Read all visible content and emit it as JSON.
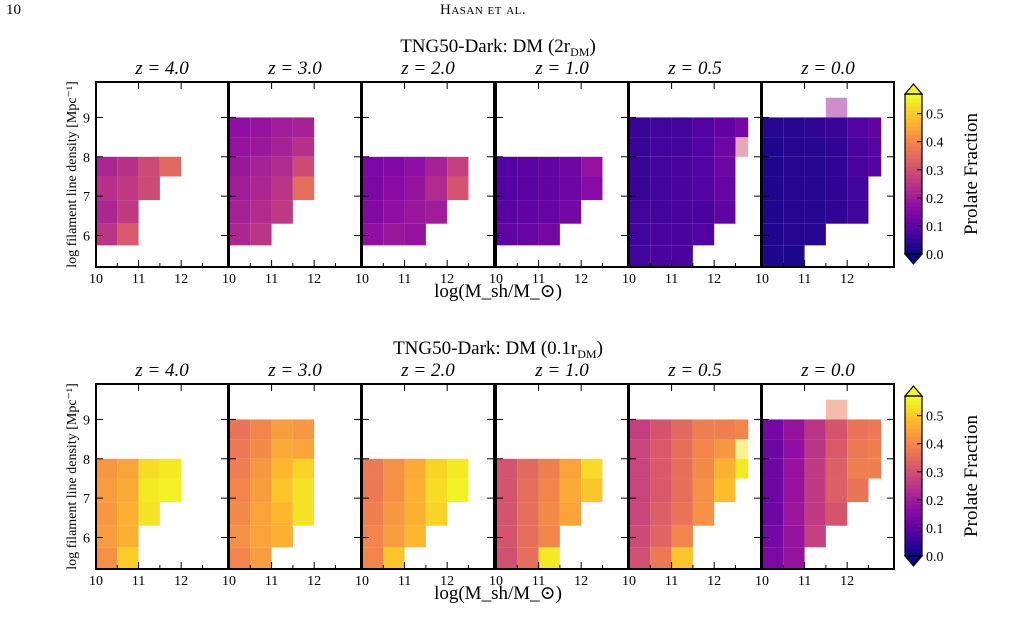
{
  "header": {
    "page_number": "10",
    "running_title": "Hasan et al."
  },
  "colorbar": {
    "label": "Prolate Fraction",
    "ticks": [
      "0.0",
      "0.1",
      "0.2",
      "0.3",
      "0.4",
      "0.5"
    ],
    "range": [
      0.0,
      0.57
    ]
  },
  "chart_data": [
    {
      "type": "heatmap",
      "title": "TNG50-Dark: DM (2r_DM)",
      "xlabel": "log(M_sh/M_⊙)",
      "ylabel": "log filament line density [Mpc⁻¹]",
      "xlim": [
        10,
        13.1
      ],
      "ylim": [
        5.2,
        9.9
      ],
      "x_edges": [
        10.0,
        10.5,
        11.0,
        11.5,
        12.0,
        12.5,
        12.8
      ],
      "y_edges": [
        5.2,
        5.75,
        6.3,
        6.9,
        7.5,
        8.0,
        8.5,
        9.0,
        9.5,
        10.0
      ],
      "colormap": "plasma",
      "panels": [
        {
          "label": "z = 4.0",
          "cells": [
            [
              null,
              null,
              null,
              null,
              null,
              null
            ],
            [
              0.25,
              0.32,
              null,
              null,
              null,
              null
            ],
            [
              0.22,
              0.26,
              null,
              null,
              null,
              null
            ],
            [
              0.24,
              0.26,
              0.29,
              null,
              null,
              null
            ],
            [
              0.22,
              0.24,
              0.29,
              0.35,
              null,
              null
            ],
            [
              null,
              null,
              null,
              null,
              null,
              null
            ],
            [
              null,
              null,
              null,
              null,
              null,
              null
            ],
            [
              null,
              null,
              null,
              null,
              null,
              null
            ],
            [
              null,
              null,
              null,
              null,
              null,
              null
            ]
          ]
        },
        {
          "label": "z = 3.0",
          "cells": [
            [
              null,
              null,
              null,
              null,
              null,
              null
            ],
            [
              0.22,
              0.25,
              null,
              null,
              null,
              null
            ],
            [
              0.21,
              0.23,
              0.26,
              null,
              null,
              null
            ],
            [
              0.2,
              0.22,
              0.25,
              0.36,
              null,
              null
            ],
            [
              0.19,
              0.21,
              0.23,
              0.29,
              null,
              null
            ],
            [
              0.18,
              0.19,
              0.21,
              0.24,
              null,
              null
            ],
            [
              0.17,
              0.18,
              0.2,
              0.21,
              null,
              null
            ],
            [
              null,
              null,
              null,
              null,
              null,
              null
            ],
            [
              null,
              null,
              null,
              null,
              null,
              null
            ]
          ]
        },
        {
          "label": "z = 2.0",
          "cells": [
            [
              null,
              null,
              null,
              null,
              null,
              null
            ],
            [
              0.17,
              0.19,
              0.18,
              null,
              null,
              null
            ],
            [
              0.15,
              0.17,
              0.19,
              0.2,
              null,
              null
            ],
            [
              0.14,
              0.16,
              0.18,
              0.23,
              0.31,
              null
            ],
            [
              0.14,
              0.15,
              0.17,
              0.21,
              0.27,
              null
            ],
            [
              null,
              null,
              null,
              null,
              null,
              null
            ],
            [
              null,
              null,
              null,
              null,
              null,
              null
            ],
            [
              null,
              null,
              null,
              null,
              null,
              null
            ],
            [
              null,
              null,
              null,
              null,
              null,
              null
            ]
          ]
        },
        {
          "label": "z = 1.0",
          "cells": [
            [
              null,
              null,
              null,
              null,
              null,
              null
            ],
            [
              0.1,
              0.11,
              0.13,
              null,
              null,
              null
            ],
            [
              0.09,
              0.1,
              0.11,
              0.13,
              null,
              null
            ],
            [
              0.08,
              0.09,
              0.1,
              0.12,
              0.16,
              null
            ],
            [
              0.08,
              0.09,
              0.1,
              0.12,
              0.18,
              null
            ],
            [
              null,
              null,
              null,
              null,
              null,
              null
            ],
            [
              null,
              null,
              null,
              null,
              null,
              null
            ],
            [
              null,
              null,
              null,
              null,
              null,
              null
            ],
            [
              null,
              null,
              null,
              null,
              null,
              null
            ]
          ]
        },
        {
          "label": "z = 0.5",
          "cells": [
            [
              0.06,
              0.07,
              0.07,
              null,
              null,
              null
            ],
            [
              0.06,
              0.07,
              0.07,
              0.08,
              null,
              null
            ],
            [
              0.06,
              0.06,
              0.07,
              0.07,
              0.1,
              null
            ],
            [
              0.05,
              0.06,
              0.07,
              0.08,
              0.11,
              null
            ],
            [
              0.05,
              0.06,
              0.07,
              0.08,
              0.12,
              null
            ],
            [
              0.05,
              0.06,
              0.06,
              0.08,
              0.12,
              0.3
            ],
            [
              0.05,
              0.06,
              0.06,
              0.08,
              0.1,
              0.13
            ],
            [
              null,
              null,
              null,
              null,
              null,
              null
            ],
            [
              null,
              null,
              null,
              null,
              null,
              null
            ]
          ]
        },
        {
          "label": "z = 0.0",
          "cells": [
            [
              0.02,
              0.02,
              null,
              null,
              null,
              null
            ],
            [
              0.02,
              0.03,
              0.03,
              null,
              null,
              null
            ],
            [
              0.02,
              0.03,
              0.03,
              0.04,
              0.06,
              null
            ],
            [
              0.02,
              0.03,
              0.03,
              0.04,
              0.06,
              null
            ],
            [
              0.02,
              0.03,
              0.03,
              0.04,
              0.07,
              0.08
            ],
            [
              0.02,
              0.03,
              0.03,
              0.04,
              0.07,
              0.09
            ],
            [
              0.03,
              0.03,
              0.04,
              0.05,
              0.08,
              0.1
            ],
            [
              null,
              null,
              null,
              0.2,
              null,
              null
            ],
            [
              null,
              null,
              null,
              null,
              null,
              null
            ]
          ]
        }
      ]
    },
    {
      "type": "heatmap",
      "title": "TNG50-Dark: DM (0.1r_DM)",
      "xlabel": "log(M_sh/M_⊙)",
      "ylabel": "log filament line density [Mpc⁻¹]",
      "xlim": [
        10,
        13.1
      ],
      "ylim": [
        5.2,
        9.9
      ],
      "x_edges": [
        10.0,
        10.5,
        11.0,
        11.5,
        12.0,
        12.5,
        12.8
      ],
      "y_edges": [
        5.2,
        5.75,
        6.3,
        6.9,
        7.5,
        8.0,
        8.5,
        9.0,
        9.5,
        10.0
      ],
      "colormap": "plasma",
      "panels": [
        {
          "label": "z = 4.0",
          "cells": [
            [
              0.42,
              0.51,
              null,
              null,
              null,
              null
            ],
            [
              0.44,
              0.47,
              null,
              null,
              null,
              null
            ],
            [
              0.43,
              0.47,
              0.54,
              null,
              null,
              null
            ],
            [
              0.44,
              0.46,
              0.55,
              0.56,
              null,
              null
            ],
            [
              0.43,
              0.45,
              0.53,
              0.55,
              null,
              null
            ],
            [
              null,
              null,
              null,
              null,
              null,
              null
            ],
            [
              null,
              null,
              null,
              null,
              null,
              null
            ],
            [
              null,
              null,
              null,
              null,
              null,
              null
            ],
            [
              null,
              null,
              null,
              null,
              null,
              null
            ]
          ]
        },
        {
          "label": "z = 3.0",
          "cells": [
            [
              0.4,
              0.44,
              null,
              null,
              null,
              null
            ],
            [
              0.42,
              0.45,
              0.47,
              null,
              null,
              null
            ],
            [
              0.41,
              0.45,
              0.48,
              0.54,
              null,
              null
            ],
            [
              0.4,
              0.44,
              0.5,
              0.54,
              null,
              null
            ],
            [
              0.39,
              0.43,
              0.48,
              0.52,
              null,
              null
            ],
            [
              0.38,
              0.41,
              0.46,
              0.45,
              null,
              null
            ],
            [
              0.37,
              0.4,
              0.44,
              0.43,
              null,
              null
            ],
            [
              null,
              null,
              null,
              null,
              null,
              null
            ],
            [
              null,
              null,
              null,
              null,
              null,
              null
            ]
          ]
        },
        {
          "label": "z = 2.0",
          "cells": [
            [
              0.4,
              0.5,
              null,
              null,
              null,
              null
            ],
            [
              0.4,
              0.44,
              0.48,
              null,
              null,
              null
            ],
            [
              0.39,
              0.43,
              0.47,
              0.52,
              null,
              null
            ],
            [
              0.38,
              0.42,
              0.47,
              0.53,
              0.56,
              null
            ],
            [
              0.38,
              0.42,
              0.46,
              0.52,
              0.55,
              null
            ],
            [
              null,
              null,
              null,
              null,
              null,
              null
            ],
            [
              null,
              null,
              null,
              null,
              null,
              null
            ],
            [
              null,
              null,
              null,
              null,
              null,
              null
            ],
            [
              null,
              null,
              null,
              null,
              null,
              null
            ]
          ]
        },
        {
          "label": "z = 1.0",
          "cells": [
            [
              0.3,
              0.36,
              0.55,
              null,
              null,
              null
            ],
            [
              0.31,
              0.36,
              0.4,
              null,
              null,
              null
            ],
            [
              0.31,
              0.36,
              0.41,
              0.45,
              null,
              null
            ],
            [
              0.31,
              0.36,
              0.4,
              0.46,
              0.5,
              null
            ],
            [
              0.31,
              0.35,
              0.39,
              0.45,
              0.53,
              null
            ],
            [
              null,
              null,
              null,
              null,
              null,
              null
            ],
            [
              null,
              null,
              null,
              null,
              null,
              null
            ],
            [
              null,
              null,
              null,
              null,
              null,
              null
            ],
            [
              null,
              null,
              null,
              null,
              null,
              null
            ]
          ]
        },
        {
          "label": "z = 0.5",
          "cells": [
            [
              0.3,
              0.38,
              0.5,
              null,
              null,
              null
            ],
            [
              0.29,
              0.34,
              0.4,
              null,
              null,
              null
            ],
            [
              0.28,
              0.33,
              0.37,
              0.42,
              null,
              null
            ],
            [
              0.28,
              0.32,
              0.36,
              0.42,
              0.49,
              null
            ],
            [
              0.28,
              0.32,
              0.36,
              0.41,
              0.47,
              0.55
            ],
            [
              0.28,
              0.32,
              0.36,
              0.4,
              0.43,
              0.54
            ],
            [
              0.27,
              0.31,
              0.35,
              0.39,
              0.39,
              0.4
            ],
            [
              null,
              null,
              null,
              null,
              null,
              null
            ],
            [
              null,
              null,
              null,
              null,
              null,
              null
            ]
          ]
        },
        {
          "label": "z = 0.0",
          "cells": [
            [
              0.14,
              0.18,
              null,
              null,
              null,
              null
            ],
            [
              0.13,
              0.18,
              0.27,
              null,
              null,
              null
            ],
            [
              0.12,
              0.19,
              0.26,
              0.31,
              null,
              null
            ],
            [
              0.12,
              0.18,
              0.26,
              0.33,
              0.37,
              null
            ],
            [
              0.12,
              0.18,
              0.26,
              0.33,
              0.39,
              0.39
            ],
            [
              0.12,
              0.17,
              0.25,
              0.32,
              0.38,
              0.39
            ],
            [
              0.13,
              0.18,
              0.25,
              0.31,
              0.37,
              0.38
            ],
            [
              null,
              null,
              null,
              0.38,
              null,
              null
            ],
            [
              null,
              null,
              null,
              null,
              null,
              null
            ]
          ]
        }
      ]
    }
  ]
}
